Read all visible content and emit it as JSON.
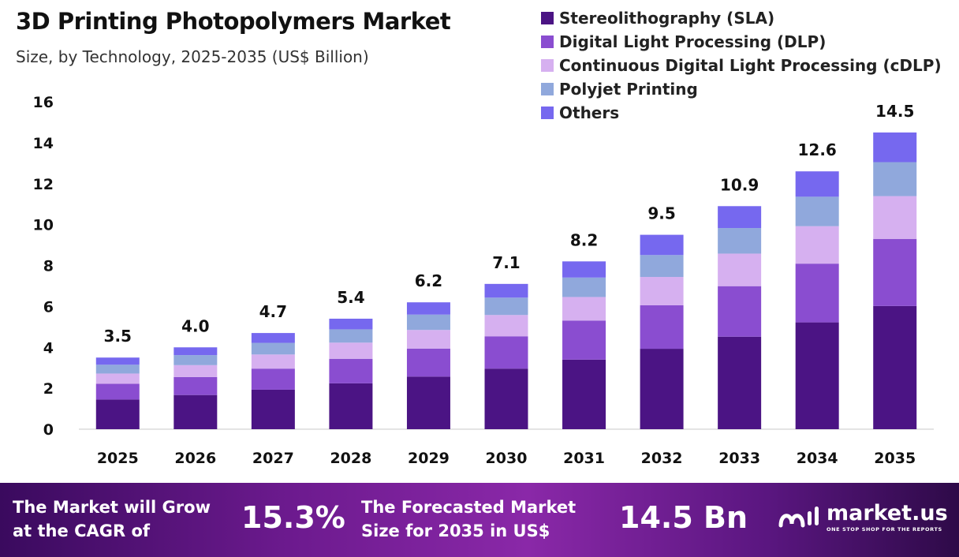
{
  "title": "3D Printing Photopolymers Market",
  "subtitle": "Size, by Technology, 2025-2035 (US$ Billion)",
  "legend": [
    {
      "label": "Stereolithography (SLA)",
      "color": "#4b1484"
    },
    {
      "label": "Digital Light Processing (DLP)",
      "color": "#8a4dd0"
    },
    {
      "label": "Continuous Digital Light Processing (cDLP)",
      "color": "#d6b0f0"
    },
    {
      "label": "Polyjet Printing",
      "color": "#90a8dc"
    },
    {
      "label": "Others",
      "color": "#7668ef"
    }
  ],
  "chart_data": {
    "type": "bar",
    "stacked": true,
    "title": "3D Printing Photopolymers Market",
    "subtitle": "Size, by Technology, 2025-2035 (US$ Billion)",
    "xlabel": "",
    "ylabel": "",
    "ylim": [
      0,
      16
    ],
    "yticks": [
      0,
      2,
      4,
      6,
      8,
      10,
      12,
      14,
      16
    ],
    "grid": false,
    "legend_position": "top-right",
    "categories": [
      "2025",
      "2026",
      "2027",
      "2028",
      "2029",
      "2030",
      "2031",
      "2032",
      "2033",
      "2034",
      "2035"
    ],
    "totals": [
      3.5,
      4.0,
      4.7,
      5.4,
      6.2,
      7.1,
      8.2,
      9.5,
      10.9,
      12.6,
      14.5
    ],
    "total_labels": [
      "3.5",
      "4.0",
      "4.7",
      "5.4",
      "6.2",
      "7.1",
      "8.2",
      "9.5",
      "10.9",
      "12.6",
      "14.5"
    ],
    "series": [
      {
        "name": "Stereolithography (SLA)",
        "color": "#4b1484",
        "values": [
          1.45,
          1.67,
          1.93,
          2.24,
          2.57,
          2.96,
          3.4,
          3.93,
          4.52,
          5.22,
          6.02
        ]
      },
      {
        "name": "Digital Light Processing (DLP)",
        "color": "#8a4dd0",
        "values": [
          0.77,
          0.88,
          1.03,
          1.2,
          1.37,
          1.58,
          1.91,
          2.13,
          2.47,
          2.87,
          3.28
        ]
      },
      {
        "name": "Continuous Digital Light Processing (cDLP)",
        "color": "#d6b0f0",
        "values": [
          0.5,
          0.58,
          0.69,
          0.79,
          0.91,
          1.04,
          1.15,
          1.38,
          1.59,
          1.83,
          2.09
        ]
      },
      {
        "name": "Polyjet Printing",
        "color": "#90a8dc",
        "values": [
          0.43,
          0.49,
          0.57,
          0.65,
          0.75,
          0.85,
          0.95,
          1.07,
          1.25,
          1.44,
          1.66
        ]
      },
      {
        "name": "Others",
        "color": "#7668ef",
        "values": [
          0.35,
          0.38,
          0.48,
          0.52,
          0.6,
          0.67,
          0.79,
          0.99,
          1.07,
          1.24,
          1.45
        ]
      }
    ]
  },
  "footer": {
    "cagr_line1": "The Market will Grow",
    "cagr_line2": "at the CAGR of",
    "cagr_value": "15.3%",
    "forecast_line1": "The Forecasted Market",
    "forecast_line2": "Size for 2035 in US$",
    "forecast_value": "14.5 Bn",
    "brand_name": "market.us",
    "brand_tagline": "ONE STOP SHOP FOR THE REPORTS"
  }
}
